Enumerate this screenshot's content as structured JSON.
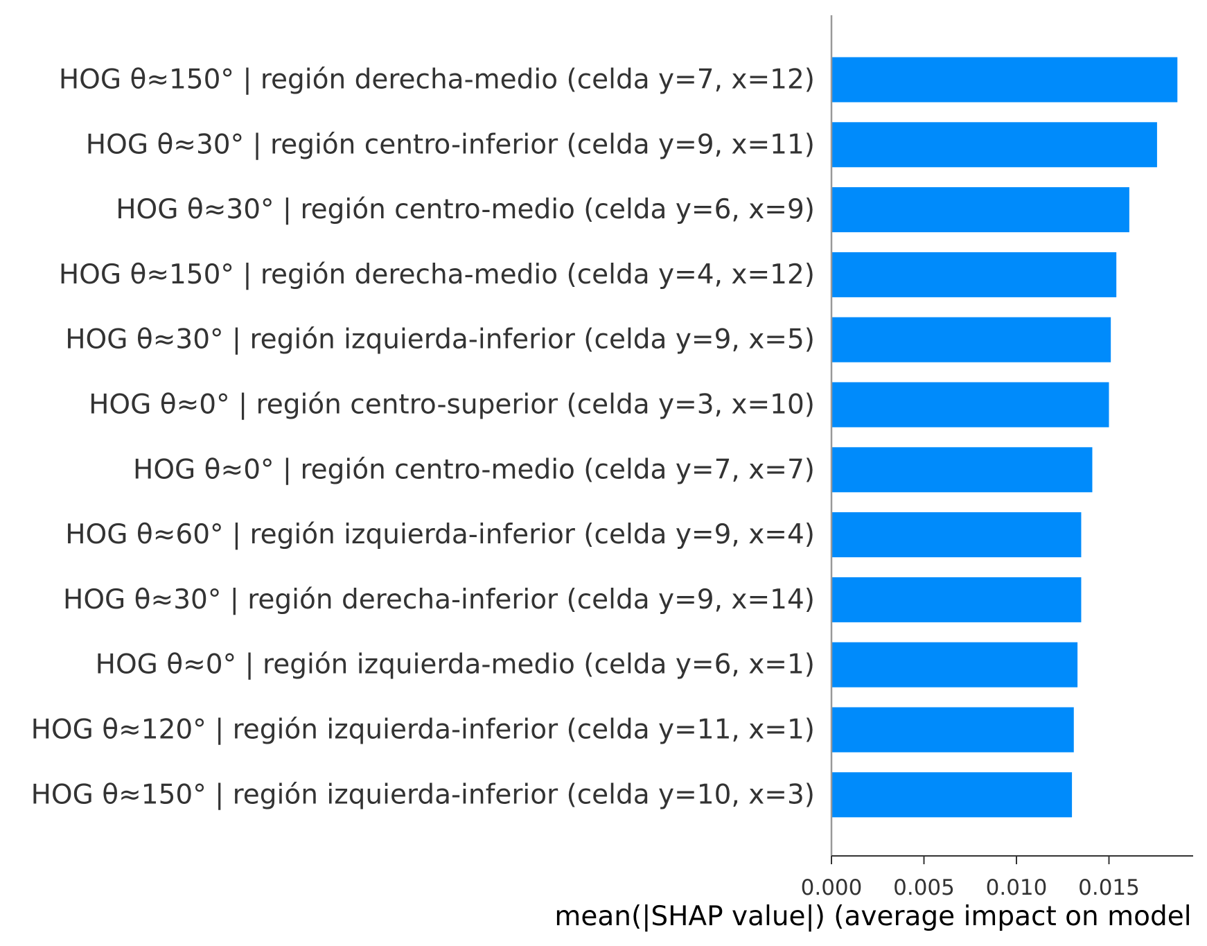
{
  "chart_data": {
    "type": "bar",
    "orientation": "horizontal",
    "title": "",
    "xlabel": "mean(|SHAP value|) (average impact on model",
    "ylabel": "",
    "xlim": [
      0,
      0.0196
    ],
    "grid": false,
    "legend": "none",
    "bar_color": "#008bfb",
    "axis_color": "#999999",
    "xticks": [
      {
        "value": 0.0,
        "label": "0.000"
      },
      {
        "value": 0.005,
        "label": "0.005"
      },
      {
        "value": 0.01,
        "label": "0.010"
      },
      {
        "value": 0.015,
        "label": "0.015"
      }
    ],
    "categories": [
      "HOG θ≈150° | región derecha-medio (celda y=7, x=12)",
      "HOG θ≈30° | región centro-inferior (celda y=9, x=11)",
      "HOG θ≈30° | región centro-medio (celda y=6, x=9)",
      "HOG θ≈150° | región derecha-medio (celda y=4, x=12)",
      "HOG θ≈30° | región izquierda-inferior (celda y=9, x=5)",
      "HOG θ≈0° | región centro-superior (celda y=3, x=10)",
      "HOG θ≈0° | región centro-medio (celda y=7, x=7)",
      "HOG θ≈60° | región izquierda-inferior (celda y=9, x=4)",
      "HOG θ≈30° | región derecha-inferior (celda y=9, x=14)",
      "HOG θ≈0° | región izquierda-medio (celda y=6, x=1)",
      "HOG θ≈120° | región izquierda-inferior (celda y=11, x=1)",
      "HOG θ≈150° | región izquierda-inferior (celda y=10, x=3)"
    ],
    "values": [
      0.0187,
      0.0176,
      0.0161,
      0.0154,
      0.0151,
      0.015,
      0.0141,
      0.0135,
      0.0135,
      0.0133,
      0.0131,
      0.013
    ]
  }
}
